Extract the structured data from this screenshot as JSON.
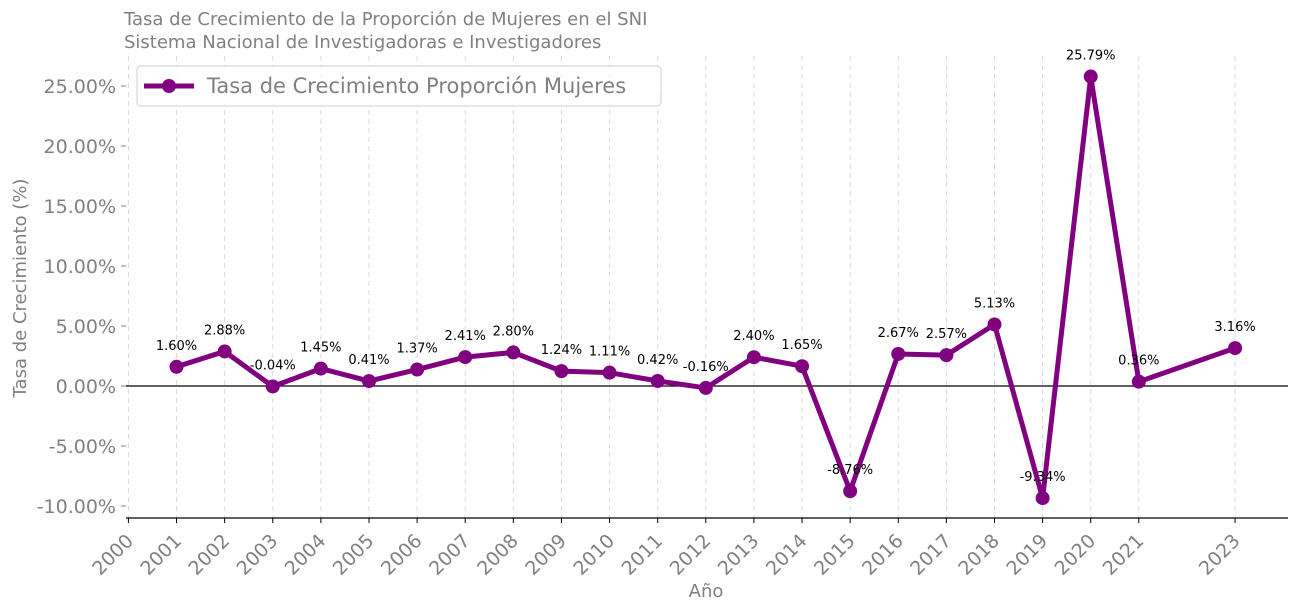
{
  "chart_data": {
    "type": "line",
    "title": "Tasa de Crecimiento de la Proporción de Mujeres en el SNI",
    "subtitle": "Sistema Nacional de Investigadoras e Investigadores",
    "xlabel": "Año",
    "ylabel": "Tasa de Crecimiento (%)",
    "ylim": [
      -11.0,
      27.5
    ],
    "xlim": [
      1999.95,
      2024.1
    ],
    "x_ticks": [
      2000,
      2001,
      2002,
      2003,
      2004,
      2005,
      2006,
      2007,
      2008,
      2009,
      2010,
      2011,
      2012,
      2013,
      2014,
      2015,
      2016,
      2017,
      2018,
      2019,
      2020,
      2021,
      2023
    ],
    "y_ticks": [
      -10,
      -5,
      0,
      5,
      10,
      15,
      20,
      25
    ],
    "y_tick_labels": [
      "-10.00%",
      "-5.00%",
      "0.00%",
      "5.00%",
      "10.00%",
      "15.00%",
      "20.00%",
      "25.00%"
    ],
    "grid": "vertical dashed",
    "zero_line": true,
    "legend_position": "top-left",
    "series": [
      {
        "name": "Tasa de Crecimiento Proporción Mujeres",
        "color": "#800080",
        "x": [
          2001,
          2002,
          2003,
          2004,
          2005,
          2006,
          2007,
          2008,
          2009,
          2010,
          2011,
          2012,
          2013,
          2014,
          2015,
          2016,
          2017,
          2018,
          2019,
          2020,
          2021,
          2023
        ],
        "values": [
          1.6,
          2.88,
          -0.04,
          1.45,
          0.41,
          1.37,
          2.41,
          2.8,
          1.24,
          1.11,
          0.42,
          -0.16,
          2.4,
          1.65,
          -8.76,
          2.67,
          2.57,
          5.13,
          -9.34,
          25.79,
          0.36,
          3.16
        ],
        "labels": [
          "1.60%",
          "2.88%",
          "-0.04%",
          "1.45%",
          "0.41%",
          "1.37%",
          "2.41%",
          "2.80%",
          "1.24%",
          "1.11%",
          "0.42%",
          "-0.16%",
          "2.40%",
          "1.65%",
          "-8.76%",
          "2.67%",
          "2.57%",
          "5.13%",
          "-9.34%",
          "25.79%",
          "0.36%",
          "3.16%"
        ]
      }
    ]
  }
}
